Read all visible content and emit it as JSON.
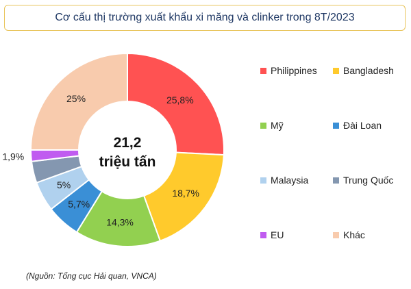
{
  "chart_data": {
    "type": "pie",
    "title": "Cơ cấu thị trường xuất khẩu xi măng và clinker trong 8T/2023",
    "center_label": {
      "value": "21,2",
      "unit": "triệu tấn"
    },
    "slices": [
      {
        "name": "Philippines",
        "value": 25.8,
        "label": "25,8%",
        "color": "#ff5252"
      },
      {
        "name": "Bangladesh",
        "value": 18.7,
        "label": "18,7%",
        "color": "#ffca2c"
      },
      {
        "name": "Mỹ",
        "value": 14.3,
        "label": "14,3%",
        "color": "#92d050"
      },
      {
        "name": "Đài Loan",
        "value": 5.7,
        "label": "5,7%",
        "color": "#3a8fd6"
      },
      {
        "name": "Malaysia",
        "value": 5,
        "label": "5%",
        "color": "#b0d1ee"
      },
      {
        "name": "Trung Quốc",
        "value": 3.6,
        "label": "",
        "color": "#8497b0"
      },
      {
        "name": "EU",
        "value": 1.9,
        "label": "1,9%",
        "color": "#c05cf0"
      },
      {
        "name": "Khác",
        "value": 25,
        "label": "25%",
        "color": "#f8cbad"
      }
    ],
    "legend_position": "right",
    "source": "(Nguồn: Tổng cục Hải quan, VNCA)"
  }
}
